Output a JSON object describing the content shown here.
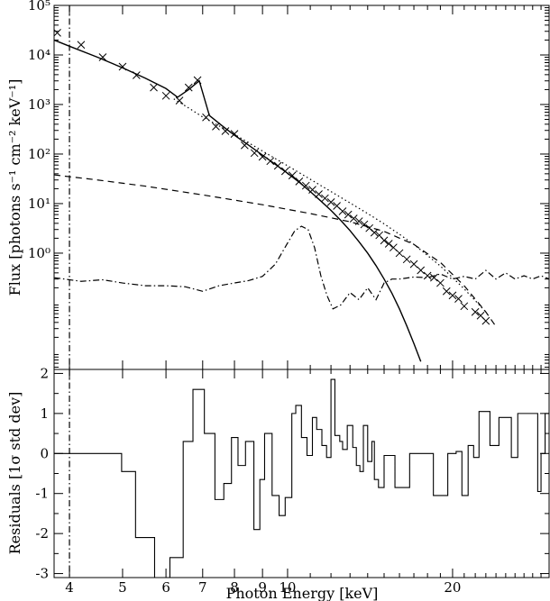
{
  "chart_data": [
    {
      "type": "line",
      "panel": "spectrum",
      "ylabel": "Flux [photons s⁻¹ cm⁻² keV⁻¹]",
      "xscale": "log",
      "yscale": "log",
      "xlim": [
        3.75,
        30.0
      ],
      "ylim": [
        0.0045,
        100000
      ],
      "y_ticks": [
        {
          "value": 1,
          "label": "10⁰"
        },
        {
          "value": 10,
          "label": "10¹"
        },
        {
          "value": 100,
          "label": "10²"
        },
        {
          "value": 1000,
          "label": "10³"
        },
        {
          "value": 10000,
          "label": "10⁴"
        },
        {
          "value": 100000,
          "label": "10⁵"
        }
      ],
      "vertical_line_x": 4.0,
      "series": [
        {
          "style": "solid",
          "x": [
            3.75,
            4.0,
            4.5,
            5.0,
            5.5,
            6.0,
            6.3,
            6.6,
            6.9,
            7.2,
            7.6,
            8.0,
            8.5,
            9.0,
            9.5,
            10.0,
            10.5,
            11.0,
            11.5,
            12.0,
            12.5,
            13.0,
            13.5,
            14.0,
            14.5,
            15.0,
            15.5,
            16.0,
            16.5,
            17.0,
            17.5
          ],
          "y": [
            20000,
            15000,
            9000,
            5500,
            3400,
            2100,
            1400,
            2000,
            3000,
            600,
            370,
            240,
            150,
            95,
            62,
            41,
            27,
            17.5,
            11.3,
            7.3,
            4.6,
            2.85,
            1.7,
            1.0,
            0.56,
            0.3,
            0.155,
            0.075,
            0.034,
            0.015,
            0.0065
          ]
        },
        {
          "style": "dotted",
          "x": [
            6.2,
            6.6,
            7.0,
            7.5,
            8.0,
            9.0,
            10.0,
            11.0,
            12.0,
            13.0,
            14.0,
            15.0,
            16.0,
            17.0,
            18.0,
            19.0,
            20.0,
            21.0,
            22.0,
            23.0
          ],
          "y": [
            1300,
            850,
            560,
            370,
            250,
            115,
            58,
            31,
            17.5,
            10.3,
            6.3,
            3.9,
            2.4,
            1.5,
            0.9,
            0.55,
            0.32,
            0.19,
            0.11,
            0.065
          ]
        },
        {
          "style": "dashed",
          "x": [
            3.75,
            4.5,
            5.5,
            7.0,
            9.0,
            11.0,
            13.0,
            15.0,
            17.0,
            19.0,
            21.0,
            23.0,
            24.0
          ],
          "y": [
            38,
            30,
            22.5,
            15,
            9.5,
            6.3,
            4.3,
            2.75,
            1.5,
            0.65,
            0.22,
            0.065,
            0.033
          ]
        },
        {
          "style": "dashdot",
          "x": [
            3.75,
            4.2,
            4.6,
            5.0,
            5.5,
            6.0,
            6.5,
            7.0,
            7.5,
            8.0,
            8.5,
            9.0,
            9.5,
            10.0,
            10.3,
            10.6,
            10.9,
            11.2,
            11.5,
            11.8,
            12.1,
            12.5,
            13.0,
            13.5,
            14.0,
            14.5,
            15.0,
            15.5,
            16.0,
            17.0,
            18.0,
            19.0,
            20.0,
            21.0,
            22.0,
            23.0,
            24.0,
            25.0,
            26.0,
            27.0,
            28.0,
            29.0,
            30.0
          ],
          "y": [
            0.32,
            0.27,
            0.29,
            0.25,
            0.22,
            0.22,
            0.21,
            0.17,
            0.22,
            0.25,
            0.28,
            0.34,
            0.6,
            1.6,
            2.8,
            3.5,
            3.0,
            1.3,
            0.35,
            0.14,
            0.075,
            0.09,
            0.16,
            0.115,
            0.2,
            0.115,
            0.25,
            0.3,
            0.3,
            0.33,
            0.32,
            0.38,
            0.3,
            0.34,
            0.3,
            0.45,
            0.3,
            0.4,
            0.3,
            0.35,
            0.3,
            0.35,
            0.3
          ]
        },
        {
          "style": "cross",
          "x": [
            3.8,
            4.2,
            4.6,
            5.0,
            5.3,
            5.7,
            6.0,
            6.35,
            6.6,
            6.85,
            7.1,
            7.4,
            7.7,
            8.0,
            8.35,
            8.7,
            9.0,
            9.3,
            9.6,
            9.9,
            10.2,
            10.5,
            10.8,
            11.1,
            11.4,
            11.7,
            12.0,
            12.3,
            12.6,
            12.9,
            13.2,
            13.5,
            13.8,
            14.1,
            14.4,
            14.7,
            15.0,
            15.3,
            15.6,
            16.0,
            16.5,
            17.0,
            17.5,
            18.0,
            18.5,
            19.0,
            19.5,
            20.0,
            20.5,
            21.0,
            22.0,
            22.5,
            23.0
          ],
          "y": [
            28000,
            16000,
            9000,
            5800,
            3900,
            2200,
            1500,
            1200,
            2200,
            3100,
            550,
            360,
            290,
            255,
            150,
            105,
            88,
            72,
            58,
            45,
            37,
            28,
            23,
            19,
            15.5,
            12.8,
            10.7,
            9.0,
            7.0,
            6.0,
            5.0,
            4.4,
            3.8,
            3.2,
            2.6,
            2.3,
            1.8,
            1.55,
            1.3,
            1.0,
            0.75,
            0.6,
            0.45,
            0.35,
            0.32,
            0.25,
            0.17,
            0.14,
            0.12,
            0.085,
            0.065,
            0.055,
            0.043
          ]
        }
      ]
    },
    {
      "type": "line",
      "panel": "residuals",
      "xlabel": "Photon Energy [keV]",
      "ylabel": "Residuals [1σ std dev]",
      "xscale": "log",
      "xlim": [
        3.75,
        30.0
      ],
      "ylim": [
        -3.1,
        2.1
      ],
      "x_ticks": [
        4,
        5,
        6,
        7,
        8,
        9,
        10,
        20
      ],
      "y_ticks": [
        -3,
        -2,
        -1,
        0,
        1,
        2
      ],
      "series": [
        {
          "style": "step",
          "edges": [
            3.75,
            4.98,
            5.28,
            5.72,
            6.1,
            6.45,
            6.72,
            7.05,
            7.37,
            7.65,
            7.9,
            8.12,
            8.38,
            8.68,
            8.9,
            9.08,
            9.37,
            9.65,
            9.9,
            10.18,
            10.35,
            10.6,
            10.85,
            11.1,
            11.3,
            11.55,
            11.78,
            12.0,
            12.2,
            12.45,
            12.6,
            12.85,
            13.15,
            13.35,
            13.55,
            13.75,
            14.0,
            14.25,
            14.4,
            14.65,
            15.0,
            15.7,
            16.7,
            17.6,
            18.45,
            19.6,
            20.3,
            20.8,
            21.35,
            21.85,
            22.35,
            23.4,
            24.3,
            25.6,
            26.3,
            28.6,
            29.0,
            29.5,
            30.0
          ],
          "values": [
            0.0,
            -0.45,
            -2.1,
            -3.1,
            -2.6,
            0.3,
            1.6,
            0.5,
            -1.15,
            -0.75,
            0.4,
            -0.3,
            0.3,
            -1.9,
            -0.65,
            0.5,
            -1.05,
            -1.55,
            -1.1,
            1.0,
            1.2,
            0.4,
            -0.05,
            0.9,
            0.6,
            0.2,
            -0.1,
            1.85,
            0.45,
            0.3,
            0.1,
            0.7,
            0.15,
            -0.3,
            -0.45,
            0.7,
            -0.2,
            0.3,
            -0.65,
            -0.85,
            -0.05,
            -0.85,
            0.0,
            0.0,
            -1.05,
            0.0,
            0.05,
            -1.05,
            0.2,
            -0.1,
            1.05,
            0.2,
            0.9,
            -0.1,
            1.0,
            -0.95,
            0.0,
            1.0,
            1.0
          ]
        }
      ]
    }
  ]
}
